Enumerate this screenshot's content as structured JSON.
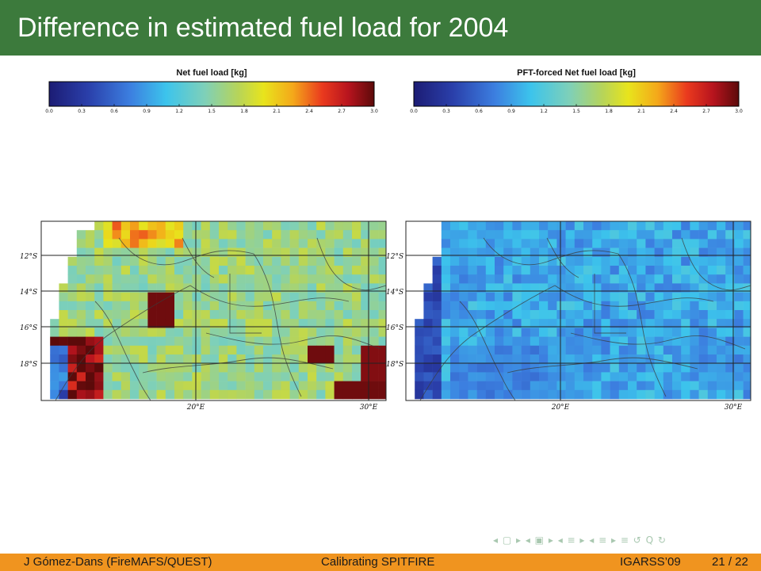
{
  "slide": {
    "title": "Difference in estimated fuel load for 2004",
    "footer_left": "J Gómez-Dans  (FireMAFS/QUEST)",
    "footer_center": "Calibrating SPITFIRE",
    "footer_conf": "IGARSS’09",
    "footer_page": "21 / 22"
  },
  "panels": [
    {
      "colorbar_title": "Net fuel load [kg]",
      "ticks": [
        "0.0",
        "0.3",
        "0.6",
        "0.9",
        "1.2",
        "1.5",
        "1.8",
        "2.1",
        "2.4",
        "2.7",
        "3.0"
      ],
      "lat_labels": [
        "12°S",
        "14°S",
        "16°S",
        "18°S"
      ],
      "lon_labels": [
        "20°E",
        "30°E"
      ],
      "dominant_value": 1.6
    },
    {
      "colorbar_title": "PFT-forced Net fuel load [kg]",
      "ticks": [
        "0.0",
        "0.3",
        "0.6",
        "0.9",
        "1.2",
        "1.5",
        "1.8",
        "2.1",
        "2.4",
        "2.7",
        "3.0"
      ],
      "lat_labels": [
        "12°S",
        "14°S",
        "16°S",
        "18°S"
      ],
      "lon_labels": [
        "20°E",
        "30°E"
      ],
      "dominant_value": 0.95
    }
  ],
  "colors": {
    "title_bar": "#3c7a3c",
    "footer_bar": "#f0941f"
  },
  "nav_icons": [
    "nav-prev-frame-icon",
    "nav-prev-slide-icon",
    "nav-prev-section-icon",
    "nav-prev-subsection-icon",
    "nav-align-icon",
    "nav-search-icon"
  ]
}
